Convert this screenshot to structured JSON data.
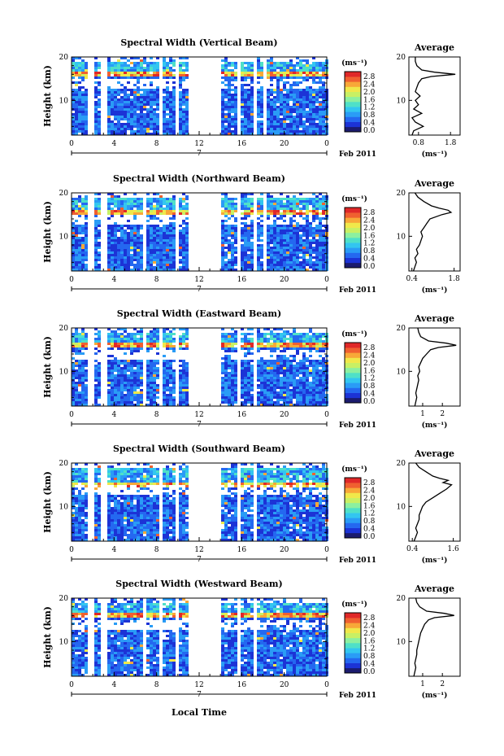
{
  "figure": {
    "common_xlabel": "Local Time",
    "date_label": "Feb 2011",
    "day_label": "7",
    "colorbar_unit": "(ms⁻¹)",
    "colorbar_ticks": [
      "0.0",
      "0.4",
      "0.8",
      "1.2",
      "1.6",
      "2.0",
      "2.4",
      "2.8"
    ],
    "colorscale": [
      "#1b1b6e",
      "#1c33d6",
      "#2468f0",
      "#2a9cf6",
      "#33c6f0",
      "#4fe0c8",
      "#8cf0a0",
      "#c8f064",
      "#f0e84a",
      "#f8a838",
      "#f06030",
      "#e02828"
    ]
  },
  "chart_data": [
    {
      "type": "heatmap",
      "title": "Spectral Width (Vertical Beam)",
      "ylabel": "Height (km)",
      "xlabel": "Local Time",
      "x_ticks": [
        "0",
        "4",
        "8",
        "12",
        "16",
        "20",
        "0"
      ],
      "y_ticks": [
        "20",
        "10"
      ],
      "xlim": [
        0,
        24
      ],
      "ylim": [
        2,
        20
      ],
      "data_gaps_hours": [
        [
          1.5,
          1.9
        ],
        [
          2.7,
          3.2
        ],
        [
          8.2,
          8.5
        ],
        [
          9.6,
          10.0
        ],
        [
          10.8,
          14.0
        ],
        [
          15.5,
          15.8
        ],
        [
          16.9,
          17.3
        ],
        [
          17.8,
          18.1
        ]
      ],
      "bright_layer_km": [
        16,
        17
      ],
      "average_profile": {
        "title": "Average",
        "xlabel": "(ms⁻¹)",
        "x_ticks": [
          "0.8",
          "1.8"
        ],
        "y_ticks": [
          "20",
          "10"
        ],
        "xlim": [
          0.5,
          2.1
        ],
        "height_km": [
          2,
          3,
          4,
          5,
          6,
          7,
          8,
          9,
          10,
          11,
          12,
          13,
          14,
          15,
          15.5,
          16,
          16.5,
          17,
          18,
          19,
          20
        ],
        "values": [
          0.6,
          0.65,
          0.95,
          0.7,
          0.6,
          0.9,
          0.65,
          0.8,
          0.7,
          0.85,
          0.7,
          0.75,
          0.8,
          0.9,
          1.2,
          1.95,
          1.3,
          0.9,
          0.75,
          0.7,
          0.7
        ]
      }
    },
    {
      "type": "heatmap",
      "title": "Spectral Width (Northward Beam)",
      "ylabel": "Height (km)",
      "xlabel": "Local Time",
      "x_ticks": [
        "0",
        "4",
        "8",
        "12",
        "16",
        "20",
        "0"
      ],
      "y_ticks": [
        "20",
        "10"
      ],
      "xlim": [
        0,
        24
      ],
      "ylim": [
        2,
        20
      ],
      "data_gaps_hours": [
        [
          1.5,
          1.9
        ],
        [
          2.7,
          3.2
        ],
        [
          6.6,
          6.8
        ],
        [
          9.6,
          10.0
        ],
        [
          10.8,
          14.0
        ],
        [
          15.5,
          15.8
        ],
        [
          16.9,
          17.3
        ],
        [
          17.8,
          18.1
        ]
      ],
      "bright_layer_km": [
        15.5,
        16.5
      ],
      "average_profile": {
        "title": "Average",
        "xlabel": "(ms⁻¹)",
        "x_ticks": [
          "0.4",
          "1.8"
        ],
        "y_ticks": [
          "20",
          "10"
        ],
        "xlim": [
          0.3,
          2.0
        ],
        "height_km": [
          2,
          3,
          4,
          5,
          6,
          7,
          8,
          9,
          10,
          11,
          12,
          13,
          14,
          15,
          15.5,
          16,
          16.5,
          17,
          18,
          19,
          20
        ],
        "values": [
          0.45,
          0.5,
          0.55,
          0.5,
          0.6,
          0.55,
          0.65,
          0.7,
          0.75,
          0.7,
          0.8,
          0.9,
          1.0,
          1.4,
          1.7,
          1.6,
          1.3,
          1.05,
          0.8,
          0.6,
          0.5
        ]
      }
    },
    {
      "type": "heatmap",
      "title": "Spectral Width (Eastward Beam)",
      "ylabel": "Height (km)",
      "xlabel": "Local Time",
      "x_ticks": [
        "0",
        "4",
        "8",
        "12",
        "16",
        "20",
        "0"
      ],
      "y_ticks": [
        "20",
        "10"
      ],
      "xlim": [
        0,
        24
      ],
      "ylim": [
        2,
        20
      ],
      "data_gaps_hours": [
        [
          1.5,
          1.9
        ],
        [
          2.7,
          3.2
        ],
        [
          6.6,
          6.8
        ],
        [
          8.2,
          8.5
        ],
        [
          9.6,
          10.0
        ],
        [
          10.8,
          14.0
        ],
        [
          15.5,
          15.8
        ],
        [
          16.9,
          17.3
        ]
      ],
      "bright_layer_km": [
        16,
        17
      ],
      "average_profile": {
        "title": "Average",
        "xlabel": "(ms⁻¹)",
        "x_ticks": [
          "1",
          "2"
        ],
        "y_ticks": [
          "20",
          "10"
        ],
        "xlim": [
          0.3,
          2.9
        ],
        "height_km": [
          2,
          3,
          4,
          5,
          6,
          7,
          8,
          9,
          10,
          11,
          12,
          13,
          14,
          15,
          15.5,
          16,
          16.5,
          17,
          18,
          19,
          20
        ],
        "values": [
          0.6,
          0.65,
          0.7,
          0.65,
          0.7,
          0.75,
          0.8,
          0.75,
          0.85,
          0.8,
          0.9,
          1.0,
          1.2,
          1.4,
          1.8,
          2.7,
          2.2,
          1.3,
          0.9,
          0.8,
          0.75
        ]
      }
    },
    {
      "type": "heatmap",
      "title": "Spectral Width (Southward Beam)",
      "ylabel": "Height (km)",
      "xlabel": "Local Time",
      "x_ticks": [
        "0",
        "4",
        "8",
        "12",
        "16",
        "20",
        "0"
      ],
      "y_ticks": [
        "20",
        "10"
      ],
      "xlim": [
        0,
        24
      ],
      "ylim": [
        2,
        20
      ],
      "data_gaps_hours": [
        [
          1.5,
          1.9
        ],
        [
          2.7,
          3.2
        ],
        [
          8.2,
          8.5
        ],
        [
          9.6,
          10.0
        ],
        [
          10.8,
          14.0
        ],
        [
          15.5,
          15.8
        ],
        [
          16.9,
          17.3
        ]
      ],
      "bright_layer_km": [
        14.5,
        16
      ],
      "average_profile": {
        "title": "Average",
        "xlabel": "(ms⁻¹)",
        "x_ticks": [
          "0.4",
          "1.6"
        ],
        "y_ticks": [
          "20",
          "10"
        ],
        "xlim": [
          0.3,
          1.8
        ],
        "height_km": [
          2,
          3,
          4,
          5,
          6,
          7,
          8,
          9,
          10,
          11,
          12,
          13,
          14,
          15,
          15.5,
          16,
          16.5,
          17,
          18,
          19,
          20
        ],
        "values": [
          0.45,
          0.5,
          0.55,
          0.5,
          0.55,
          0.6,
          0.6,
          0.65,
          0.7,
          0.8,
          1.0,
          1.2,
          1.4,
          1.55,
          1.3,
          1.45,
          1.2,
          1.0,
          0.8,
          0.6,
          0.5
        ]
      }
    },
    {
      "type": "heatmap",
      "title": "Spectral Width (Westward Beam)",
      "ylabel": "Height (km)",
      "xlabel": "Local Time",
      "x_ticks": [
        "0",
        "4",
        "8",
        "12",
        "16",
        "20",
        "0"
      ],
      "y_ticks": [
        "20",
        "10"
      ],
      "xlim": [
        0,
        24
      ],
      "ylim": [
        2,
        20
      ],
      "data_gaps_hours": [
        [
          1.5,
          1.9
        ],
        [
          2.7,
          3.2
        ],
        [
          6.6,
          6.8
        ],
        [
          8.2,
          8.5
        ],
        [
          9.6,
          10.0
        ],
        [
          10.8,
          14.0
        ],
        [
          15.5,
          15.8
        ],
        [
          16.9,
          17.3
        ]
      ],
      "bright_layer_km": [
        15.8,
        16.8
      ],
      "average_profile": {
        "title": "Average",
        "xlabel": "(ms⁻¹)",
        "x_ticks": [
          "1",
          "2"
        ],
        "y_ticks": [
          "20",
          "10"
        ],
        "xlim": [
          0.3,
          2.9
        ],
        "height_km": [
          2,
          3,
          4,
          5,
          6,
          7,
          8,
          9,
          10,
          11,
          12,
          13,
          14,
          15,
          15.5,
          16,
          16.5,
          17,
          18,
          19,
          20
        ],
        "values": [
          0.55,
          0.6,
          0.65,
          0.6,
          0.65,
          0.7,
          0.7,
          0.75,
          0.8,
          0.85,
          0.9,
          1.0,
          1.1,
          1.3,
          1.6,
          2.6,
          2.1,
          1.2,
          0.85,
          0.7,
          0.65
        ]
      }
    }
  ]
}
